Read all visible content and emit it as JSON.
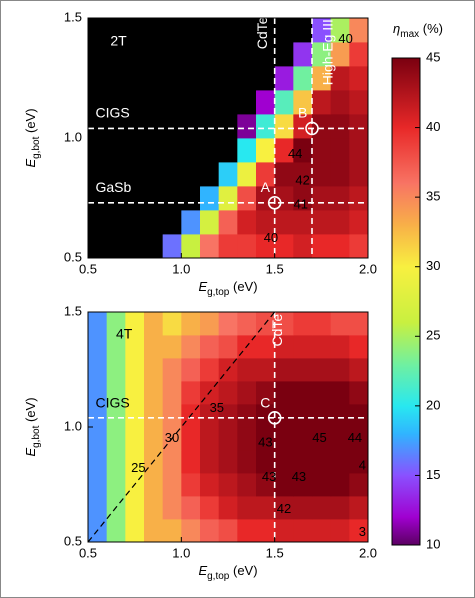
{
  "chart_data": {
    "type": "contour",
    "xlabel": [
      "E",
      "g,top",
      " (eV)"
    ],
    "ylabel": [
      "E",
      "g,bot",
      " (eV)"
    ],
    "xlim": [
      0.5,
      2.0
    ],
    "ylim": [
      0.5,
      1.5
    ],
    "xticks": [
      0.5,
      {
        "value": 1.0,
        "label": "1.0"
      },
      1.5,
      {
        "value": 2.0,
        "label": "2.0"
      }
    ],
    "yticks": [
      0.5,
      {
        "value": 1.0,
        "label": "1.0"
      },
      1.5
    ],
    "x": [
      0.55,
      0.65,
      0.75,
      0.85,
      0.95,
      1.05,
      1.15,
      1.25,
      1.35,
      1.45,
      1.55,
      1.65,
      1.75,
      1.85,
      1.95
    ],
    "y": [
      0.55,
      0.65,
      0.75,
      0.85,
      0.95,
      1.05,
      1.15,
      1.25,
      1.35,
      1.45
    ],
    "missing_color": "#000000",
    "colorbar": {
      "label": [
        "η",
        "max",
        " (%)"
      ],
      "lim": [
        10,
        45
      ],
      "ticks": [
        10,
        15,
        20,
        25,
        30,
        35,
        40,
        45
      ],
      "colorscale": [
        [
          10,
          "#5a0060"
        ],
        [
          12,
          "#a000d0"
        ],
        [
          15,
          "#8a50ff"
        ],
        [
          18,
          "#30b4ff"
        ],
        [
          20,
          "#28e8f0"
        ],
        [
          23,
          "#70f0a0"
        ],
        [
          26,
          "#c8f040"
        ],
        [
          30,
          "#f8f040"
        ],
        [
          33,
          "#f8b048"
        ],
        [
          36,
          "#f87464"
        ],
        [
          40,
          "#e82828"
        ],
        [
          45,
          "#7a0010"
        ]
      ]
    },
    "panels": [
      {
        "texts": [
          "2T",
          "CdTe",
          "CIGS",
          "GaSb",
          "High-Eg III-V"
        ],
        "vlines": [
          1.5,
          1.7
        ],
        "hlines": [
          1.04,
          0.73
        ],
        "points": [
          {
            "label": "A",
            "x": 1.5,
            "y": 0.73
          },
          {
            "label": "B",
            "x": 1.7,
            "y": 1.04
          }
        ],
        "contour_labels": [
          40,
          44,
          42,
          41,
          40
        ],
        "z": [
          [
            null,
            null,
            null,
            null,
            16,
            26,
            36,
            39,
            39,
            40,
            40,
            41,
            40,
            40,
            39
          ],
          [
            null,
            null,
            null,
            null,
            null,
            17,
            27,
            37,
            41,
            42,
            42,
            42,
            42,
            42,
            41
          ],
          [
            null,
            null,
            null,
            null,
            null,
            null,
            18,
            28,
            38,
            43,
            43,
            44,
            43,
            43,
            42
          ],
          [
            null,
            null,
            null,
            null,
            null,
            null,
            null,
            19,
            29,
            39,
            44,
            44,
            44,
            44,
            43
          ],
          [
            null,
            null,
            null,
            null,
            null,
            null,
            null,
            null,
            20,
            30,
            40,
            45,
            44,
            44,
            43
          ],
          [
            null,
            null,
            null,
            null,
            null,
            null,
            null,
            null,
            11,
            21,
            31,
            41,
            44,
            44,
            43
          ],
          [
            null,
            null,
            null,
            null,
            null,
            null,
            null,
            null,
            null,
            12,
            22,
            32,
            42,
            43,
            42
          ],
          [
            null,
            null,
            null,
            null,
            null,
            null,
            null,
            null,
            null,
            null,
            13,
            23,
            33,
            42,
            41
          ],
          [
            null,
            null,
            null,
            null,
            null,
            null,
            null,
            null,
            null,
            null,
            null,
            14,
            24,
            34,
            39
          ],
          [
            null,
            null,
            null,
            null,
            null,
            null,
            null,
            null,
            null,
            null,
            null,
            null,
            15,
            25,
            35
          ]
        ]
      },
      {
        "texts": [
          "4T",
          "CdTe",
          "CIGS"
        ],
        "vlines": [
          1.5
        ],
        "hlines": [
          1.04
        ],
        "diagonal": [
          [
            0.5,
            0.5
          ],
          [
            1.5,
            1.5
          ]
        ],
        "points": [
          {
            "label": "C",
            "x": 1.5,
            "y": 1.04
          }
        ],
        "contour_labels": [
          35,
          30,
          25,
          43,
          45,
          44,
          4,
          43,
          43,
          42,
          3
        ],
        "z": [
          [
            17,
            24,
            30,
            33,
            33,
            35,
            37,
            38,
            40,
            40,
            41,
            41,
            41,
            41,
            40
          ],
          [
            17,
            24,
            30,
            33,
            35,
            37,
            39,
            41,
            42,
            42,
            43,
            43,
            43,
            43,
            42
          ],
          [
            17,
            24,
            30,
            33,
            35,
            39,
            41,
            42,
            43,
            44,
            45,
            45,
            45,
            45,
            44
          ],
          [
            17,
            24,
            30,
            33,
            35,
            40,
            42,
            43,
            44,
            45,
            45,
            46,
            46,
            45,
            45
          ],
          [
            17,
            24,
            30,
            33,
            35,
            40,
            42,
            43,
            44,
            45,
            46,
            46,
            46,
            46,
            45
          ],
          [
            17,
            24,
            30,
            33,
            35,
            40,
            42,
            43,
            44,
            45,
            45,
            46,
            46,
            45,
            45
          ],
          [
            17,
            24,
            30,
            33,
            35,
            39,
            41,
            42,
            43,
            44,
            45,
            45,
            45,
            45,
            44
          ],
          [
            17,
            24,
            30,
            33,
            35,
            37,
            39,
            41,
            42,
            42,
            43,
            43,
            43,
            43,
            42
          ],
          [
            17,
            24,
            30,
            33,
            33,
            35,
            37,
            38,
            40,
            40,
            41,
            41,
            41,
            41,
            40
          ],
          [
            17,
            24,
            30,
            33,
            31,
            33,
            34,
            36,
            37,
            38,
            38,
            39,
            39,
            38,
            38
          ]
        ]
      }
    ]
  }
}
